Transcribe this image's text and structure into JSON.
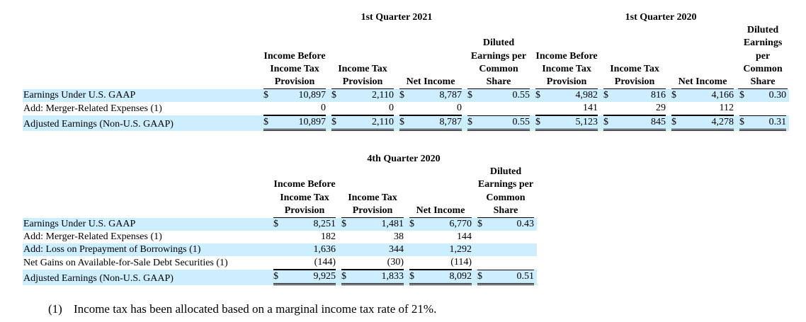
{
  "colors": {
    "row_shade": "#cceeff"
  },
  "table1": {
    "periods": [
      "1st Quarter 2021",
      "1st Quarter 2020"
    ],
    "headers": [
      "Income Before Income Tax Provision",
      "Income Tax Provision",
      "Net Income",
      "Diluted Earnings per Common Share",
      "Income Before Income Tax Provision",
      "Income Tax Provision",
      "Net Income",
      "Diluted Earnings per Common Share"
    ],
    "rows": [
      {
        "label": "Earnings Under U.S. GAAP",
        "cells": [
          {
            "d": "$",
            "v": "10,897"
          },
          {
            "d": "$",
            "v": "2,110"
          },
          {
            "d": "$",
            "v": "8,787"
          },
          {
            "d": "$",
            "v": "0.55"
          },
          {
            "d": "$",
            "v": "4,982"
          },
          {
            "d": "$",
            "v": "816"
          },
          {
            "d": "$",
            "v": "4,166"
          },
          {
            "d": "$",
            "v": "0.30"
          }
        ]
      },
      {
        "label": "Add: Merger-Related Expenses (1)",
        "cells": [
          {
            "d": "",
            "v": "0"
          },
          {
            "d": "",
            "v": "0"
          },
          {
            "d": "",
            "v": "0"
          },
          {
            "d": "",
            "v": ""
          },
          {
            "d": "",
            "v": "141"
          },
          {
            "d": "",
            "v": "29"
          },
          {
            "d": "",
            "v": "112"
          },
          {
            "d": "",
            "v": ""
          }
        ]
      },
      {
        "label": "Adjusted Earnings (Non-U.S. GAAP)",
        "cells": [
          {
            "d": "$",
            "v": "10,897"
          },
          {
            "d": "$",
            "v": "2,110"
          },
          {
            "d": "$",
            "v": "8,787"
          },
          {
            "d": "$",
            "v": "0.55"
          },
          {
            "d": "$",
            "v": "5,123"
          },
          {
            "d": "$",
            "v": "845"
          },
          {
            "d": "$",
            "v": "4,278"
          },
          {
            "d": "$",
            "v": "0.31"
          }
        ]
      }
    ]
  },
  "table2": {
    "period": "4th Quarter 2020",
    "headers": [
      "Income Before Income Tax Provision",
      "Income Tax Provision",
      "Net Income",
      "Diluted Earnings per Common Share"
    ],
    "rows": [
      {
        "label": "Earnings Under U.S. GAAP",
        "cells": [
          {
            "d": "$",
            "v": "8,251"
          },
          {
            "d": "$",
            "v": "1,481"
          },
          {
            "d": "$",
            "v": "6,770"
          },
          {
            "d": "$",
            "v": "0.43"
          }
        ]
      },
      {
        "label": "Add: Merger-Related Expenses (1)",
        "cells": [
          {
            "d": "",
            "v": "182"
          },
          {
            "d": "",
            "v": "38"
          },
          {
            "d": "",
            "v": "144"
          },
          {
            "d": "",
            "v": ""
          }
        ]
      },
      {
        "label": "Add: Loss on Prepayment of Borrowings (1)",
        "cells": [
          {
            "d": "",
            "v": "1,636"
          },
          {
            "d": "",
            "v": "344"
          },
          {
            "d": "",
            "v": "1,292"
          },
          {
            "d": "",
            "v": ""
          }
        ]
      },
      {
        "label": "Net Gains on Available-for-Sale Debt Securities (1)",
        "cells": [
          {
            "d": "",
            "v": "(144)"
          },
          {
            "d": "",
            "v": "(30)"
          },
          {
            "d": "",
            "v": "(114)"
          },
          {
            "d": "",
            "v": ""
          }
        ]
      },
      {
        "label": "Adjusted Earnings (Non-U.S. GAAP)",
        "cells": [
          {
            "d": "$",
            "v": "9,925"
          },
          {
            "d": "$",
            "v": "1,833"
          },
          {
            "d": "$",
            "v": "8,092"
          },
          {
            "d": "$",
            "v": "0.51"
          }
        ]
      }
    ]
  },
  "footnote": {
    "marker": "(1)",
    "text": "Income tax has been allocated based on a marginal income tax rate of 21%."
  }
}
